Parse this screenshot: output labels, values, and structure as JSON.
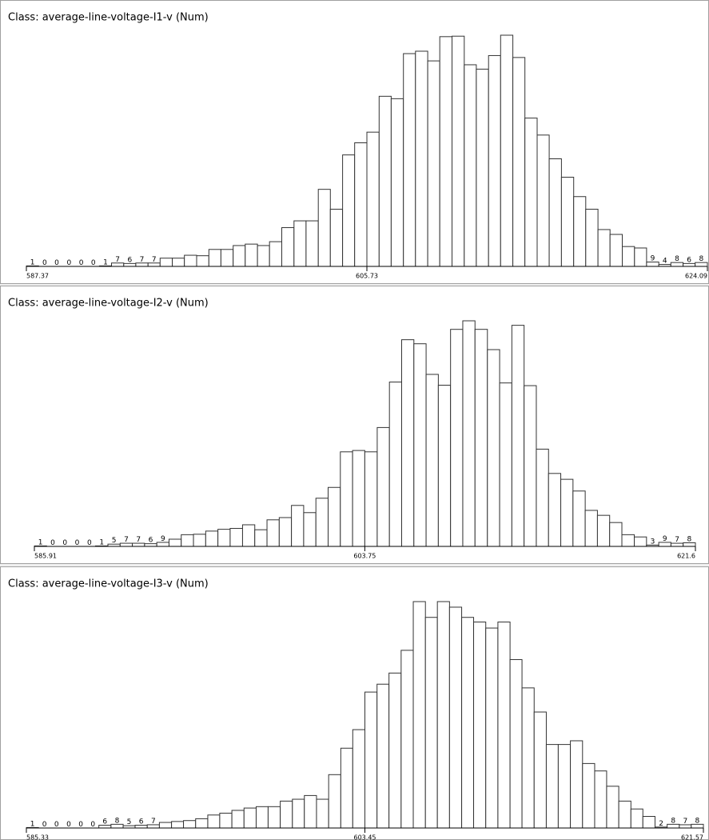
{
  "chart_data": [
    {
      "type": "histogram",
      "title": "Class: average-line-voltage-I1-v (Num)",
      "bins": [
        587.37,
        588.03,
        588.68,
        589.34,
        590.0,
        590.65,
        591.31,
        591.96,
        592.62,
        593.27,
        593.93,
        594.58,
        595.24,
        595.89,
        596.55,
        597.21,
        597.86,
        598.52,
        599.17,
        599.83,
        600.48,
        601.14,
        601.8,
        602.45,
        603.11,
        603.76,
        604.42,
        605.07,
        605.73,
        606.39,
        607.04,
        607.7,
        608.35,
        609.01,
        609.66,
        610.32,
        610.98,
        611.63,
        612.29,
        612.94,
        613.6,
        614.25,
        614.91,
        615.56,
        616.22,
        616.88,
        617.53,
        618.19,
        618.84,
        619.5,
        620.16,
        620.81,
        621.47,
        622.12,
        622.78,
        623.43,
        624.09
      ],
      "values": [
        1,
        0,
        0,
        0,
        0,
        0,
        1,
        7,
        6,
        7,
        7,
        17,
        17,
        23,
        22,
        35,
        35,
        43,
        46,
        43,
        51,
        80,
        94,
        94,
        159,
        118,
        230,
        255,
        277,
        351,
        346,
        439,
        444,
        424,
        474,
        475,
        416,
        407,
        435,
        477,
        431,
        306,
        271,
        222,
        184,
        144,
        118,
        76,
        66,
        41,
        38,
        9,
        4,
        8,
        6,
        8
      ],
      "xlim": [
        587.37,
        624.09
      ],
      "xticks": [
        587.37,
        605.73,
        624.09
      ],
      "color": "#ffffff"
    },
    {
      "type": "histogram",
      "title": "Class: average-line-voltage-I2-v (Num)",
      "bins": [
        585.91,
        586.57,
        587.23,
        587.89,
        588.55,
        589.21,
        589.88,
        590.54,
        591.2,
        591.86,
        592.52,
        593.18,
        593.84,
        594.5,
        595.16,
        595.82,
        596.48,
        597.15,
        597.81,
        598.47,
        599.13,
        599.79,
        600.45,
        601.11,
        601.77,
        602.43,
        603.09,
        603.75,
        604.42,
        605.08,
        605.74,
        606.4,
        607.06,
        607.72,
        608.38,
        609.04,
        609.7,
        610.37,
        611.03,
        611.69,
        612.35,
        613.01,
        613.67,
        614.33,
        614.99,
        615.65,
        616.31,
        616.97,
        617.63,
        618.3,
        618.96,
        619.62,
        620.28,
        620.94,
        621.6
      ],
      "values": [
        1,
        0,
        0,
        0,
        0,
        1,
        5,
        7,
        7,
        6,
        9,
        16,
        26,
        27,
        34,
        38,
        40,
        48,
        37,
        59,
        64,
        91,
        75,
        107,
        131,
        210,
        213,
        210,
        264,
        365,
        459,
        450,
        382,
        358,
        482,
        501,
        482,
        437,
        363,
        491,
        357,
        216,
        162,
        149,
        123,
        80,
        69,
        53,
        26,
        21,
        3,
        9,
        7,
        8
      ],
      "xlim": [
        585.91,
        621.6
      ],
      "xticks": [
        585.91,
        603.75,
        621.6
      ],
      "color": "#ffffff"
    },
    {
      "type": "histogram",
      "title": "Class: average-line-voltage-I3-v (Num)",
      "bins": [
        585.33,
        585.98,
        586.62,
        587.27,
        587.92,
        588.57,
        589.21,
        589.86,
        590.51,
        591.15,
        591.8,
        592.45,
        593.1,
        593.74,
        594.39,
        595.04,
        595.68,
        596.33,
        596.98,
        597.63,
        598.27,
        598.92,
        599.57,
        600.21,
        600.86,
        601.51,
        602.16,
        602.8,
        603.45,
        604.1,
        604.74,
        605.39,
        606.04,
        606.69,
        607.33,
        607.98,
        608.63,
        609.27,
        609.92,
        610.57,
        611.22,
        611.86,
        612.51,
        613.16,
        613.8,
        614.45,
        615.1,
        615.75,
        616.39,
        617.04,
        617.69,
        618.33,
        618.98,
        619.63,
        620.28,
        620.92,
        621.57
      ],
      "values": [
        1,
        0,
        0,
        0,
        0,
        0,
        6,
        8,
        5,
        6,
        7,
        12,
        14,
        16,
        20,
        28,
        32,
        38,
        43,
        46,
        46,
        58,
        62,
        70,
        62,
        115,
        172,
        212,
        293,
        310,
        334,
        383,
        488,
        454,
        488,
        476,
        454,
        444,
        431,
        444,
        363,
        302,
        250,
        180,
        180,
        188,
        139,
        123,
        90,
        58,
        41,
        25,
        2,
        8,
        7,
        8
      ],
      "xlim": [
        585.33,
        621.57
      ],
      "xticks": [
        585.33,
        603.45,
        621.57
      ],
      "color": "#ffffff"
    }
  ]
}
